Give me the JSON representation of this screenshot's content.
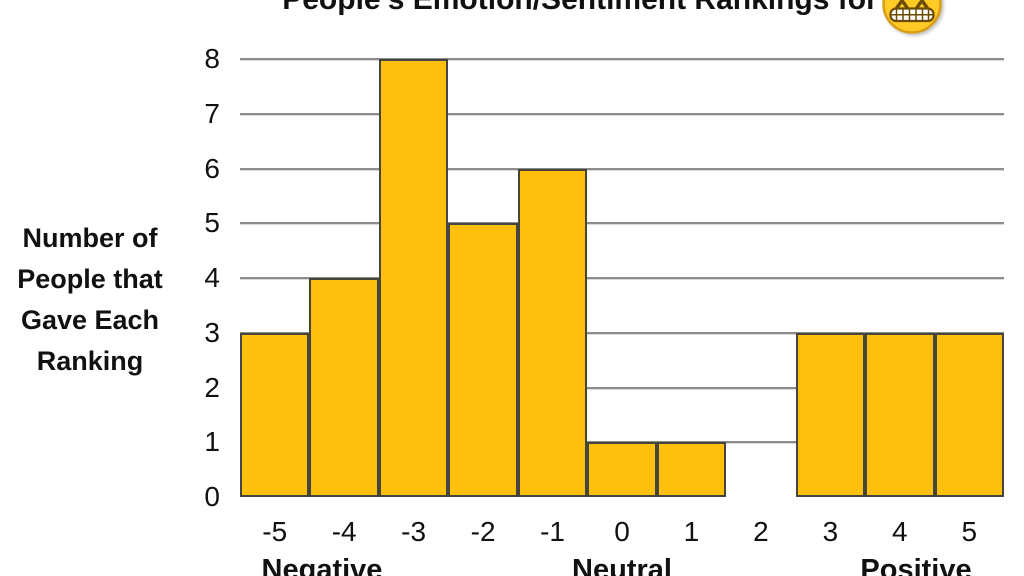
{
  "chart_data": {
    "type": "bar",
    "title": "People's Emotion/Sentiment Rankings for",
    "title_emoji": "grimacing-face-emoji",
    "ylabel": "Number of People that Gave Each Ranking",
    "ylabel_lines": [
      "Number of",
      "People that",
      "Gave Each",
      "Ranking"
    ],
    "categories": [
      "-5",
      "-4",
      "-3",
      "-2",
      "-1",
      "0",
      "1",
      "2",
      "3",
      "4",
      "5"
    ],
    "values": [
      3,
      4,
      8,
      5,
      6,
      1,
      1,
      0,
      3,
      3,
      3
    ],
    "yticks": [
      "0",
      "1",
      "2",
      "3",
      "4",
      "5",
      "6",
      "7",
      "8"
    ],
    "ylim": [
      0,
      8
    ],
    "grid": "horizontal",
    "legend": "none",
    "group_labels": [
      "Negative",
      "Neutral",
      "Positive"
    ],
    "colors": {
      "bar_fill": "#FFC00D",
      "bar_border": "#45453C",
      "gridline": "#8C8C8C",
      "text": "#111111",
      "emoji_face": "#FFCB24",
      "emoji_outline": "#DA9D16",
      "emoji_features": "#6B4C00"
    }
  }
}
